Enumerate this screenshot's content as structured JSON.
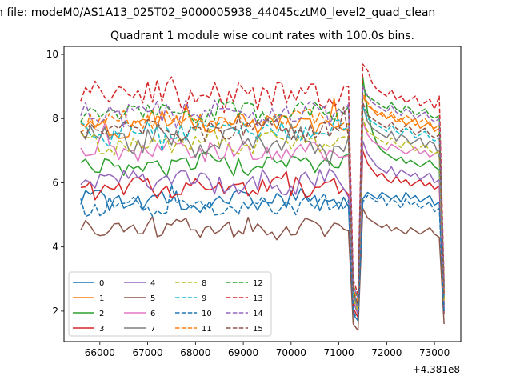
{
  "figure": {
    "suptitle": "n file: modeM0/AS1A13_025T02_9000005938_44045cztM0_level2_quad_clean"
  },
  "chart_data": {
    "type": "line",
    "title": "Quadrant 1 module wise count rates with 100.0s bins.",
    "xlabel": "",
    "ylabel": "",
    "x_offset_label": "+4.381e8",
    "xlim": [
      65250,
      73550
    ],
    "ylim": [
      1.05,
      10.25
    ],
    "x_ticks": [
      66000,
      67000,
      68000,
      69000,
      70000,
      71000,
      72000,
      73000
    ],
    "x_tick_labels": [
      "66000",
      "67000",
      "68000",
      "69000",
      "70000",
      "71000",
      "72000",
      "73000"
    ],
    "y_ticks": [
      2,
      4,
      6,
      8,
      10
    ],
    "y_tick_labels": [
      "2",
      "4",
      "6",
      "8",
      "10"
    ],
    "grid": false,
    "legend": {
      "position": "lower-left",
      "columns": 4
    },
    "x": {
      "start": 65600,
      "end": 71200,
      "step": 100,
      "tail": [
        71300,
        71400,
        71500,
        71600,
        71700,
        71800,
        71900,
        72000,
        72100,
        72200,
        72300,
        72400,
        72500,
        72600,
        72700,
        72800,
        72900,
        73000,
        73100,
        73200
      ]
    },
    "series": [
      {
        "name": "0",
        "color": "#1f77b4",
        "dash": "solid",
        "base": 5.45,
        "amp": 0.28,
        "tail": [
          1.9,
          1.7,
          5.5,
          5.7,
          5.6,
          5.5,
          5.7,
          5.6,
          5.5,
          5.6,
          5.4,
          5.7,
          5.5,
          5.6,
          5.4,
          5.5,
          5.6,
          5.3,
          5.4,
          2.0
        ]
      },
      {
        "name": "1",
        "color": "#ff7f0e",
        "dash": "solid",
        "base": 7.85,
        "amp": 0.35,
        "tail": [
          2.3,
          1.9,
          8.7,
          8.4,
          8.3,
          8.1,
          8.2,
          8.0,
          8.1,
          7.9,
          8.0,
          7.8,
          7.9,
          8.0,
          7.7,
          7.8,
          7.9,
          7.6,
          7.7,
          2.4
        ]
      },
      {
        "name": "2",
        "color": "#2ca02c",
        "dash": "solid",
        "base": 6.55,
        "amp": 0.32,
        "tail": [
          2.6,
          2.2,
          9.3,
          8.2,
          7.6,
          7.2,
          7.0,
          6.9,
          6.8,
          6.7,
          6.8,
          6.6,
          6.7,
          6.6,
          6.5,
          6.6,
          6.7,
          6.5,
          6.4,
          2.2
        ]
      },
      {
        "name": "3",
        "color": "#d62728",
        "dash": "solid",
        "base": 5.85,
        "amp": 0.3,
        "tail": [
          2.1,
          1.8,
          7.0,
          6.6,
          6.4,
          6.2,
          6.3,
          6.1,
          6.0,
          6.2,
          6.0,
          6.1,
          5.9,
          6.0,
          6.1,
          5.9,
          6.0,
          5.8,
          5.9,
          1.9
        ]
      },
      {
        "name": "4",
        "color": "#9467bd",
        "dash": "solid",
        "base": 6.0,
        "amp": 0.35,
        "tail": [
          2.3,
          1.9,
          7.3,
          6.9,
          6.7,
          6.5,
          6.4,
          6.3,
          6.5,
          6.2,
          6.4,
          6.3,
          6.2,
          6.3,
          6.1,
          6.2,
          6.3,
          6.0,
          6.1,
          2.1
        ]
      },
      {
        "name": "5",
        "color": "#8c564b",
        "dash": "solid",
        "base": 4.55,
        "amp": 0.28,
        "tail": [
          1.6,
          1.4,
          5.2,
          4.9,
          4.8,
          4.7,
          4.6,
          4.7,
          4.5,
          4.6,
          4.5,
          4.4,
          4.6,
          4.5,
          4.4,
          4.5,
          4.6,
          4.4,
          4.3,
          1.6
        ]
      },
      {
        "name": "6",
        "color": "#e377c2",
        "dash": "solid",
        "base": 7.0,
        "amp": 0.3,
        "tail": [
          2.4,
          2.0,
          7.9,
          7.5,
          7.3,
          7.2,
          7.1,
          7.0,
          7.2,
          7.1,
          7.0,
          6.9,
          7.0,
          7.1,
          6.9,
          7.0,
          6.8,
          6.9,
          7.0,
          2.3
        ]
      },
      {
        "name": "7",
        "color": "#7f7f7f",
        "dash": "solid",
        "base": 7.3,
        "amp": 0.4,
        "tail": [
          2.5,
          2.1,
          8.4,
          7.9,
          7.7,
          7.6,
          7.5,
          7.4,
          7.6,
          7.3,
          7.5,
          7.4,
          7.2,
          7.3,
          7.4,
          7.1,
          7.3,
          7.2,
          6.8,
          2.4
        ]
      },
      {
        "name": "8",
        "color": "#bcbd22",
        "dash": "dashed",
        "base": 7.25,
        "amp": 0.3,
        "tail": [
          2.4,
          2.0,
          8.0,
          7.6,
          7.5,
          7.4,
          7.3,
          7.2,
          7.4,
          7.2,
          7.1,
          7.3,
          7.2,
          7.0,
          7.1,
          7.2,
          7.0,
          6.9,
          7.0,
          2.3
        ]
      },
      {
        "name": "9",
        "color": "#17becf",
        "dash": "dashed",
        "base": 7.6,
        "amp": 0.3,
        "tail": [
          2.6,
          2.2,
          8.4,
          8.0,
          7.9,
          7.8,
          7.7,
          7.6,
          7.8,
          7.6,
          7.5,
          7.7,
          7.6,
          7.4,
          7.5,
          7.6,
          7.4,
          7.3,
          7.4,
          2.5
        ]
      },
      {
        "name": "10",
        "color": "#1f77b4",
        "dash": "dashed",
        "base": 5.3,
        "amp": 0.28,
        "tail": [
          2.0,
          1.7,
          5.4,
          5.6,
          5.5,
          5.4,
          5.6,
          5.3,
          5.5,
          5.4,
          5.2,
          5.5,
          5.3,
          5.4,
          5.2,
          5.3,
          5.4,
          5.1,
          5.2,
          1.9
        ]
      },
      {
        "name": "11",
        "color": "#ff7f0e",
        "dash": "dashed",
        "base": 7.95,
        "amp": 0.3,
        "tail": [
          2.7,
          2.3,
          8.8,
          8.5,
          8.3,
          8.2,
          8.1,
          8.0,
          8.2,
          8.0,
          7.9,
          8.1,
          8.0,
          7.8,
          7.9,
          8.0,
          7.8,
          7.7,
          7.8,
          2.6
        ]
      },
      {
        "name": "12",
        "color": "#2ca02c",
        "dash": "dashed",
        "base": 8.2,
        "amp": 0.3,
        "tail": [
          2.8,
          2.4,
          9.0,
          8.7,
          8.6,
          8.5,
          8.4,
          8.3,
          8.5,
          8.3,
          8.2,
          8.4,
          8.3,
          8.1,
          8.2,
          8.3,
          8.1,
          8.0,
          8.1,
          2.7
        ]
      },
      {
        "name": "13",
        "color": "#d62728",
        "dash": "dashed",
        "base": 8.75,
        "amp": 0.4,
        "tail": [
          3.0,
          2.5,
          9.7,
          9.5,
          9.1,
          8.9,
          8.8,
          8.7,
          8.9,
          8.6,
          8.7,
          8.5,
          8.6,
          8.7,
          8.4,
          8.5,
          8.6,
          8.3,
          8.7,
          2.9
        ]
      },
      {
        "name": "14",
        "color": "#9467bd",
        "dash": "dashed",
        "base": 8.15,
        "amp": 0.35,
        "tail": [
          2.8,
          2.4,
          9.0,
          8.7,
          8.5,
          8.4,
          8.3,
          8.2,
          8.4,
          8.2,
          8.1,
          8.3,
          8.2,
          8.0,
          8.1,
          8.2,
          8.0,
          7.9,
          8.0,
          2.7
        ]
      },
      {
        "name": "15",
        "color": "#8c564b",
        "dash": "dashed",
        "base": 7.65,
        "amp": 0.3,
        "tail": [
          2.6,
          2.2,
          8.5,
          8.1,
          8.0,
          7.9,
          7.8,
          7.7,
          7.9,
          7.7,
          7.6,
          7.8,
          7.7,
          7.5,
          7.6,
          7.7,
          7.5,
          7.4,
          7.5,
          2.5
        ]
      }
    ]
  }
}
